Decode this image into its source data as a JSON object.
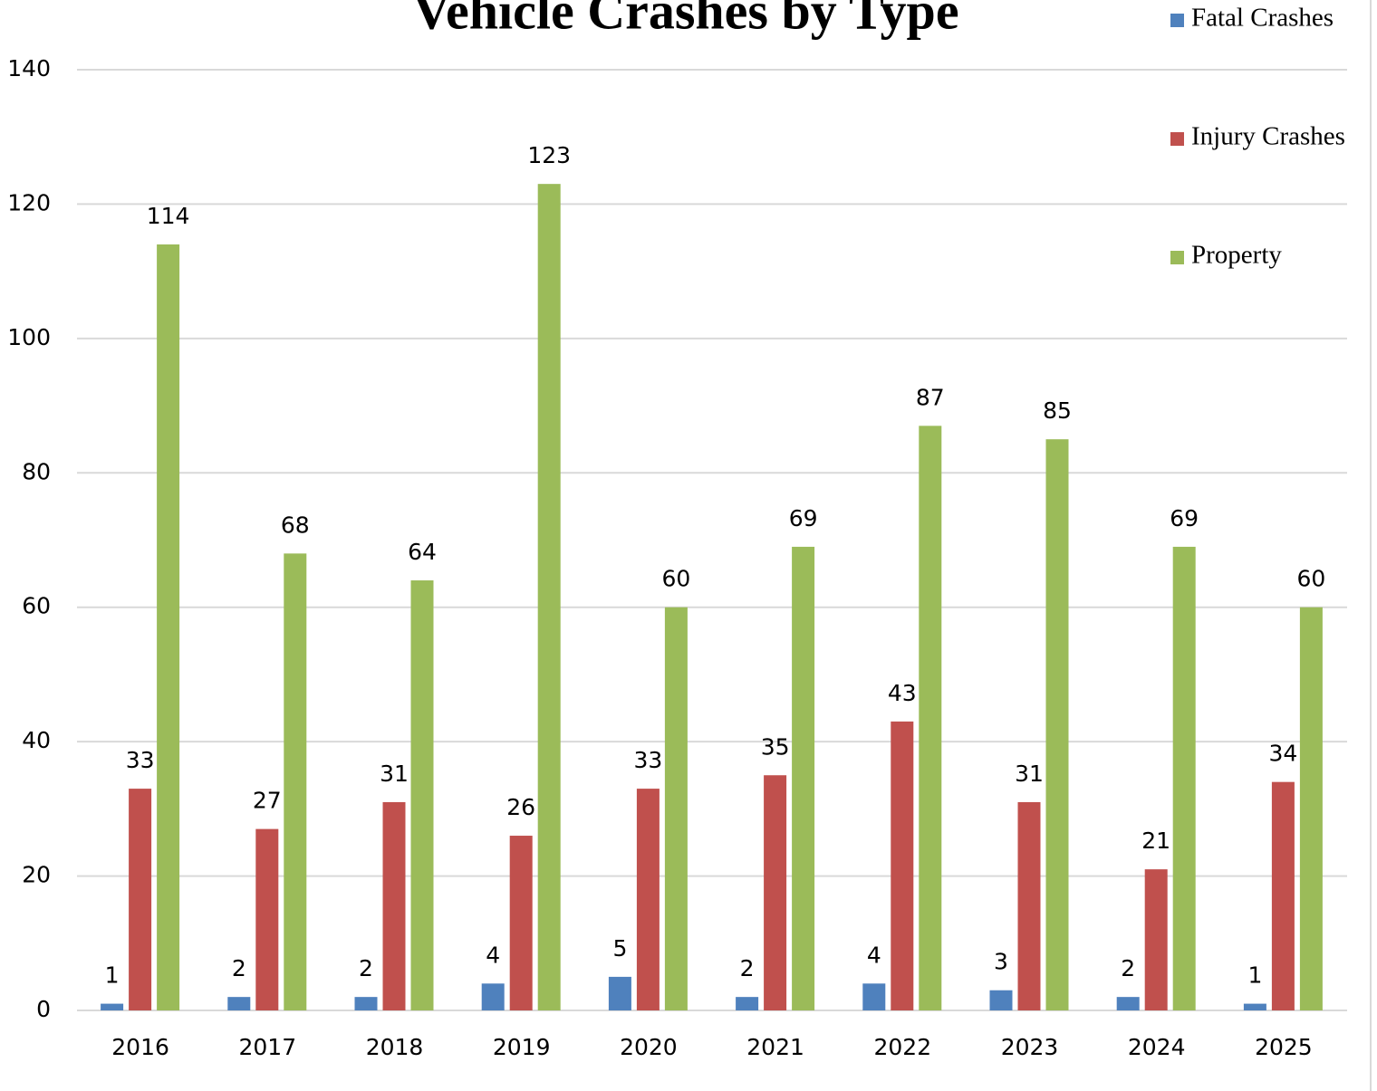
{
  "chart_data": {
    "type": "bar",
    "title": "Vehicle Crashes by Type",
    "categories": [
      "2016",
      "2017",
      "2018",
      "2019",
      "2020",
      "2021",
      "2022",
      "2023",
      "2024",
      "2025"
    ],
    "series": [
      {
        "name": "Fatal Crashes",
        "color": "#4f81bd",
        "values": [
          1,
          2,
          2,
          4,
          5,
          2,
          4,
          3,
          2,
          1
        ]
      },
      {
        "name": "Injury Crashes",
        "color": "#c0504d",
        "values": [
          33,
          27,
          31,
          26,
          33,
          35,
          43,
          31,
          21,
          34
        ]
      },
      {
        "name": "Property",
        "color": "#9bbb59",
        "values": [
          114,
          68,
          64,
          123,
          60,
          69,
          87,
          85,
          69,
          60
        ]
      }
    ],
    "ylim": [
      0,
      140
    ],
    "yticks": [
      0,
      20,
      40,
      60,
      80,
      100,
      120,
      140
    ],
    "grid": true,
    "legend": "right"
  }
}
